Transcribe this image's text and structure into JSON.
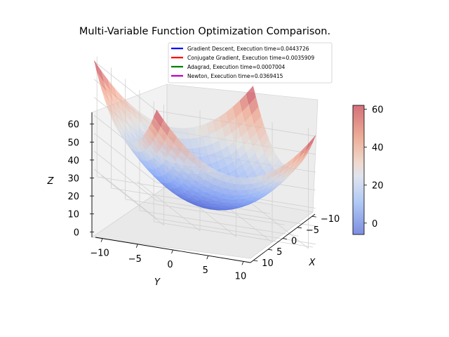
{
  "chart_data": {
    "type": "surface3d",
    "title": "Multi-Variable Function Optimization Comparison.",
    "xlabel": "X",
    "ylabel": "Y",
    "zlabel": "Z",
    "x_ticks": [
      "−10",
      "−5",
      "0",
      "5",
      "10"
    ],
    "y_ticks": [
      "−10",
      "−5",
      "0",
      "5",
      "10"
    ],
    "z_ticks": [
      "0",
      "10",
      "20",
      "30",
      "40",
      "50",
      "60"
    ],
    "xlim": [
      -11,
      11
    ],
    "ylim": [
      -11,
      11
    ],
    "zlim": [
      -3,
      64
    ],
    "surface": {
      "function": "(x^2 + y^2) / 4",
      "x_range": [
        -11,
        11
      ],
      "y_range": [
        -11,
        11
      ],
      "z_range": [
        0,
        60.5
      ],
      "colormap": "coolwarm",
      "alpha": 0.6
    },
    "legend": [
      {
        "label": "Gradient Descent, Execution time=0.0443726",
        "color": "#0000ff"
      },
      {
        "label": "Conjugate Gradient, Execution time=0.0035909",
        "color": "#ff0000"
      },
      {
        "label": "Adagrad, Execution time=0.0007004",
        "color": "#008000"
      },
      {
        "label": "Newton, Execution time=0.0369415",
        "color": "#bf00bf"
      }
    ],
    "legend_position": "top-right",
    "colorbar": {
      "ticks": [
        "0",
        "20",
        "40",
        "60"
      ],
      "range": [
        -6,
        62
      ]
    },
    "grid": true
  }
}
